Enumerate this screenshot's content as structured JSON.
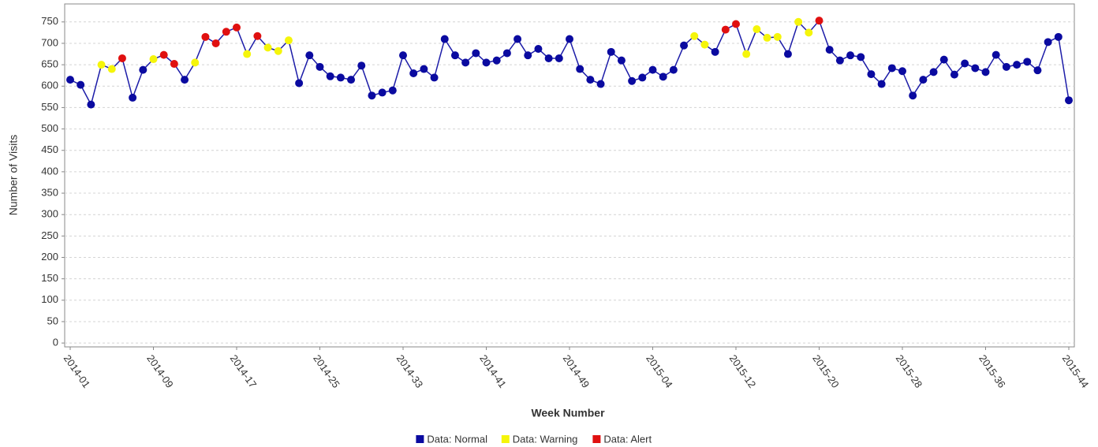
{
  "chart_data": {
    "type": "line",
    "x_label": "Week Number",
    "y_label": "Number of Visits",
    "categories": [
      "2014-01",
      null,
      null,
      null,
      null,
      null,
      null,
      null,
      "2014-09",
      null,
      null,
      null,
      null,
      null,
      null,
      null,
      "2014-17",
      null,
      null,
      null,
      null,
      null,
      null,
      null,
      "2014-25",
      null,
      null,
      null,
      null,
      null,
      null,
      null,
      "2014-33",
      null,
      null,
      null,
      null,
      null,
      null,
      null,
      "2014-41",
      null,
      null,
      null,
      null,
      null,
      null,
      null,
      "2014-49",
      null,
      null,
      null,
      null,
      null,
      null,
      null,
      "2015-04",
      null,
      null,
      null,
      null,
      null,
      null,
      null,
      "2015-12",
      null,
      null,
      null,
      null,
      null,
      null,
      null,
      "2015-20",
      null,
      null,
      null,
      null,
      null,
      null,
      null,
      "2015-28",
      null,
      null,
      null,
      null,
      null,
      null,
      null,
      "2015-36",
      null,
      null,
      null,
      null,
      null,
      null,
      null,
      "2015-44"
    ],
    "line_color": "#1c1ca8",
    "series": [
      {
        "name": "Data: Normal",
        "color": "#0a0aa0",
        "values": [
          615,
          603,
          557,
          null,
          null,
          null,
          573,
          638,
          null,
          null,
          null,
          615,
          null,
          null,
          null,
          null,
          null,
          null,
          null,
          null,
          null,
          null,
          607,
          672,
          645,
          623,
          620,
          615,
          648,
          578,
          585,
          590,
          672,
          630,
          640,
          620,
          710,
          672,
          655,
          677,
          655,
          660,
          677,
          710,
          672,
          687,
          665,
          665,
          710,
          640,
          615,
          605,
          680,
          660,
          612,
          620,
          638,
          622,
          638,
          695,
          null,
          null,
          680,
          null,
          null,
          null,
          null,
          null,
          null,
          675,
          null,
          null,
          null,
          685,
          660,
          672,
          668,
          628,
          605,
          642,
          635,
          578,
          615,
          633,
          662,
          627,
          653,
          642,
          633,
          673,
          645,
          650,
          657,
          637,
          703,
          715,
          567
        ]
      },
      {
        "name": "Data: Warning",
        "color": "#f5f50a",
        "values": [
          null,
          null,
          null,
          650,
          640,
          null,
          null,
          null,
          663,
          null,
          null,
          null,
          655,
          null,
          null,
          null,
          null,
          675,
          null,
          690,
          682,
          707,
          null,
          null,
          null,
          null,
          null,
          null,
          null,
          null,
          null,
          null,
          null,
          null,
          null,
          null,
          null,
          null,
          null,
          null,
          null,
          null,
          null,
          null,
          null,
          null,
          null,
          null,
          null,
          null,
          null,
          null,
          null,
          null,
          null,
          null,
          null,
          null,
          null,
          null,
          717,
          697,
          null,
          null,
          null,
          675,
          733,
          713,
          715,
          null,
          750,
          725,
          null,
          null,
          null,
          null,
          null,
          null,
          null,
          null,
          null,
          null,
          null,
          null,
          null,
          null,
          null,
          null,
          null,
          null,
          null,
          null,
          null,
          null,
          null,
          null,
          null
        ]
      },
      {
        "name": "Data: Alert",
        "color": "#e01010",
        "values": [
          null,
          null,
          null,
          null,
          null,
          665,
          null,
          null,
          null,
          673,
          652,
          null,
          null,
          715,
          700,
          727,
          737,
          null,
          717,
          null,
          null,
          null,
          null,
          null,
          null,
          null,
          null,
          null,
          null,
          null,
          null,
          null,
          null,
          null,
          null,
          null,
          null,
          null,
          null,
          null,
          null,
          null,
          null,
          null,
          null,
          null,
          null,
          null,
          null,
          null,
          null,
          null,
          null,
          null,
          null,
          null,
          null,
          null,
          null,
          null,
          null,
          null,
          null,
          732,
          745,
          null,
          null,
          null,
          null,
          null,
          null,
          null,
          753,
          null,
          null,
          null,
          null,
          null,
          null,
          null,
          null,
          null,
          null,
          null,
          null,
          null,
          null,
          null,
          null,
          null,
          null,
          null,
          null,
          null,
          null,
          null,
          null
        ]
      }
    ],
    "ylim": [
      -9,
      792
    ],
    "yticks": [
      0,
      50,
      100,
      150,
      200,
      250,
      300,
      350,
      400,
      450,
      500,
      550,
      600,
      650,
      700,
      750
    ],
    "grid": true
  }
}
